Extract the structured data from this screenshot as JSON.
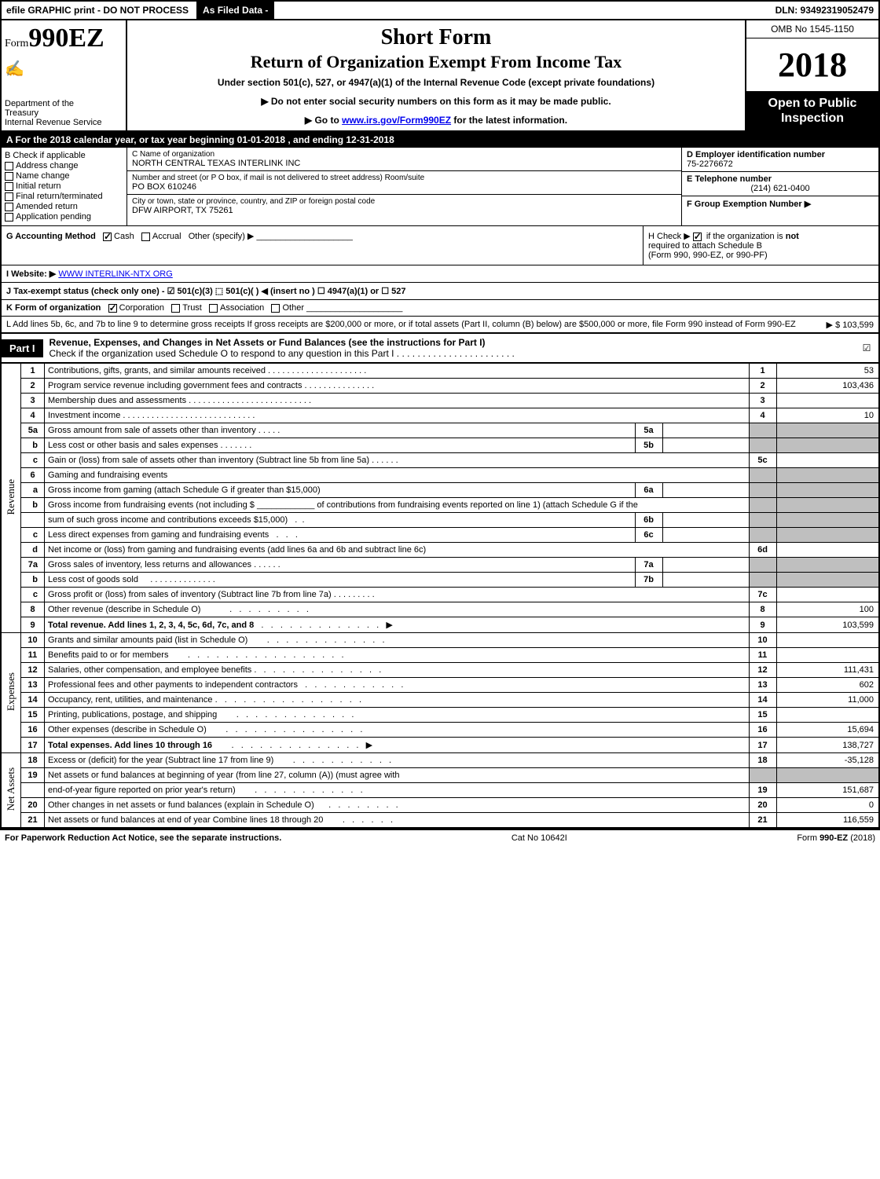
{
  "top": {
    "efile": "efile GRAPHIC print - DO NOT PROCESS",
    "asfiled": "As Filed Data -",
    "dln": "DLN: 93492319052479"
  },
  "header": {
    "form_prefix": "Form",
    "form_number": "990EZ",
    "dept1": "Department of the",
    "dept2": "Treasury",
    "dept3": "Internal Revenue Service",
    "short_form": "Short Form",
    "title": "Return of Organization Exempt From Income Tax",
    "under": "Under section 501(c), 527, or 4947(a)(1) of the Internal Revenue Code (except private foundations)",
    "warn": "▶ Do not enter social security numbers on this form as it may be made public.",
    "goto_pre": "▶ Go to ",
    "goto_link": "www.irs.gov/Form990EZ",
    "goto_post": " for the latest information.",
    "omb": "OMB No 1545-1150",
    "year": "2018",
    "open": "Open to Public Inspection"
  },
  "rowA": "A  For the 2018 calendar year, or tax year beginning 01-01-2018              , and ending 12-31-2018",
  "B": {
    "header": "B  Check if applicable",
    "items": [
      "Address change",
      "Name change",
      "Initial return",
      "Final return/terminated",
      "Amended return",
      "Application pending"
    ]
  },
  "C": {
    "name_lbl": "C Name of organization",
    "name": "NORTH CENTRAL TEXAS INTERLINK INC",
    "street_lbl": "Number and street (or P O box, if mail is not delivered to street address)  Room/suite",
    "street": "PO BOX 610246",
    "city_lbl": "City or town, state or province, country, and ZIP or foreign postal code",
    "city": "DFW AIRPORT, TX  75261"
  },
  "DEF": {
    "d_lbl": "D Employer identification number",
    "d_val": "75-2276672",
    "e_lbl": "E Telephone number",
    "e_val": "(214) 621-0400",
    "f_lbl": "F Group Exemption Number   ▶"
  },
  "G": {
    "label": "G Accounting Method",
    "cash": "Cash",
    "accrual": "Accrual",
    "other": "Other (specify) ▶"
  },
  "H": {
    "line1_pre": "H   Check ▶ ",
    "line1_post": " if the organization is ",
    "line1_not": "not",
    "line2": "required to attach Schedule B",
    "line3": "(Form 990, 990-EZ, or 990-PF)"
  },
  "I": {
    "label": "I Website: ▶",
    "link": "WWW INTERLINK-NTX ORG"
  },
  "J": "J Tax-exempt status (check only one) - ☑ 501(c)(3) ⬚ 501(c)(  ) ◀ (insert no ) ☐ 4947(a)(1) or ☐ 527",
  "K": {
    "label": "K Form of organization",
    "corp": "Corporation",
    "trust": "Trust",
    "assoc": "Association",
    "other": "Other"
  },
  "L": {
    "text": "L Add lines 5b, 6c, and 7b to line 9 to determine gross receipts  If gross receipts are $200,000 or more, or if total assets (Part II, column (B) below) are $500,000 or more, file Form 990 instead of Form 990-EZ",
    "amount": "▶ $ 103,599"
  },
  "partI": {
    "label": "Part I",
    "title": "Revenue, Expenses, and Changes in Net Assets or Fund Balances (see the instructions for Part I)",
    "check_line": "Check if the organization used Schedule O to respond to any question in this Part I",
    "checked": "☑"
  },
  "sidelabels": {
    "rev": "Revenue",
    "exp": "Expenses",
    "net": "Net Assets"
  },
  "lines": {
    "l1_desc": "Contributions, gifts, grants, and similar amounts received",
    "l1_val": "53",
    "l2_desc": "Program service revenue including government fees and contracts",
    "l2_val": "103,436",
    "l3_desc": "Membership dues and assessments",
    "l3_val": "",
    "l4_desc": "Investment income",
    "l4_val": "10",
    "l5a_desc": "Gross amount from sale of assets other than inventory",
    "l5a_mid": "5a",
    "l5b_desc": "Less  cost or other basis and sales expenses",
    "l5b_mid": "5b",
    "l5c_desc": "Gain or (loss) from sale of assets other than inventory (Subtract line 5b from line 5a)",
    "l5c_num": "5c",
    "l6_desc": "Gaming and fundraising events",
    "l6a_desc": "Gross income from gaming (attach Schedule G if greater than $15,000)",
    "l6a_mid": "6a",
    "l6b_desc1": "Gross income from fundraising events (not including $ ____________ of contributions from fundraising events reported on line 1) (attach Schedule G if the",
    "l6b_desc2": "sum of such gross income and contributions exceeds $15,000)",
    "l6b_mid": "6b",
    "l6c_desc": "Less  direct expenses from gaming and fundraising events",
    "l6c_mid": "6c",
    "l6d_desc": "Net income or (loss) from gaming and fundraising events (add lines 6a and 6b and subtract line 6c)",
    "l6d_num": "6d",
    "l7a_desc": "Gross sales of inventory, less returns and allowances",
    "l7a_mid": "7a",
    "l7b_desc": "Less  cost of goods sold",
    "l7b_mid": "7b",
    "l7c_desc": "Gross profit or (loss) from sales of inventory (Subtract line 7b from line 7a)",
    "l7c_num": "7c",
    "l8_desc": "Other revenue (describe in Schedule O)",
    "l8_val": "100",
    "l9_desc": "Total revenue. Add lines 1, 2, 3, 4, 5c, 6d, 7c, and 8",
    "l9_val": "103,599",
    "l10_desc": "Grants and similar amounts paid (list in Schedule O)",
    "l10_val": "",
    "l11_desc": "Benefits paid to or for members",
    "l11_val": "",
    "l12_desc": "Salaries, other compensation, and employee benefits",
    "l12_val": "111,431",
    "l13_desc": "Professional fees and other payments to independent contractors",
    "l13_val": "602",
    "l14_desc": "Occupancy, rent, utilities, and maintenance",
    "l14_val": "11,000",
    "l15_desc": "Printing, publications, postage, and shipping",
    "l15_val": "",
    "l16_desc": "Other expenses (describe in Schedule O)",
    "l16_val": "15,694",
    "l17_desc": "Total expenses. Add lines 10 through 16",
    "l17_val": "138,727",
    "l18_desc": "Excess or (deficit) for the year (Subtract line 17 from line 9)",
    "l18_val": "-35,128",
    "l19_desc1": "Net assets or fund balances at beginning of year (from line 27, column (A)) (must agree with",
    "l19_desc2": "end-of-year figure reported on prior year's return)",
    "l19_val": "151,687",
    "l20_desc": "Other changes in net assets or fund balances (explain in Schedule O)",
    "l20_val": "0",
    "l21_desc": "Net assets or fund balances at end of year  Combine lines 18 through 20",
    "l21_val": "116,559"
  },
  "footer": {
    "left": "For Paperwork Reduction Act Notice, see the separate instructions.",
    "center": "Cat No  10642I",
    "right": "Form 990-EZ (2018)"
  }
}
